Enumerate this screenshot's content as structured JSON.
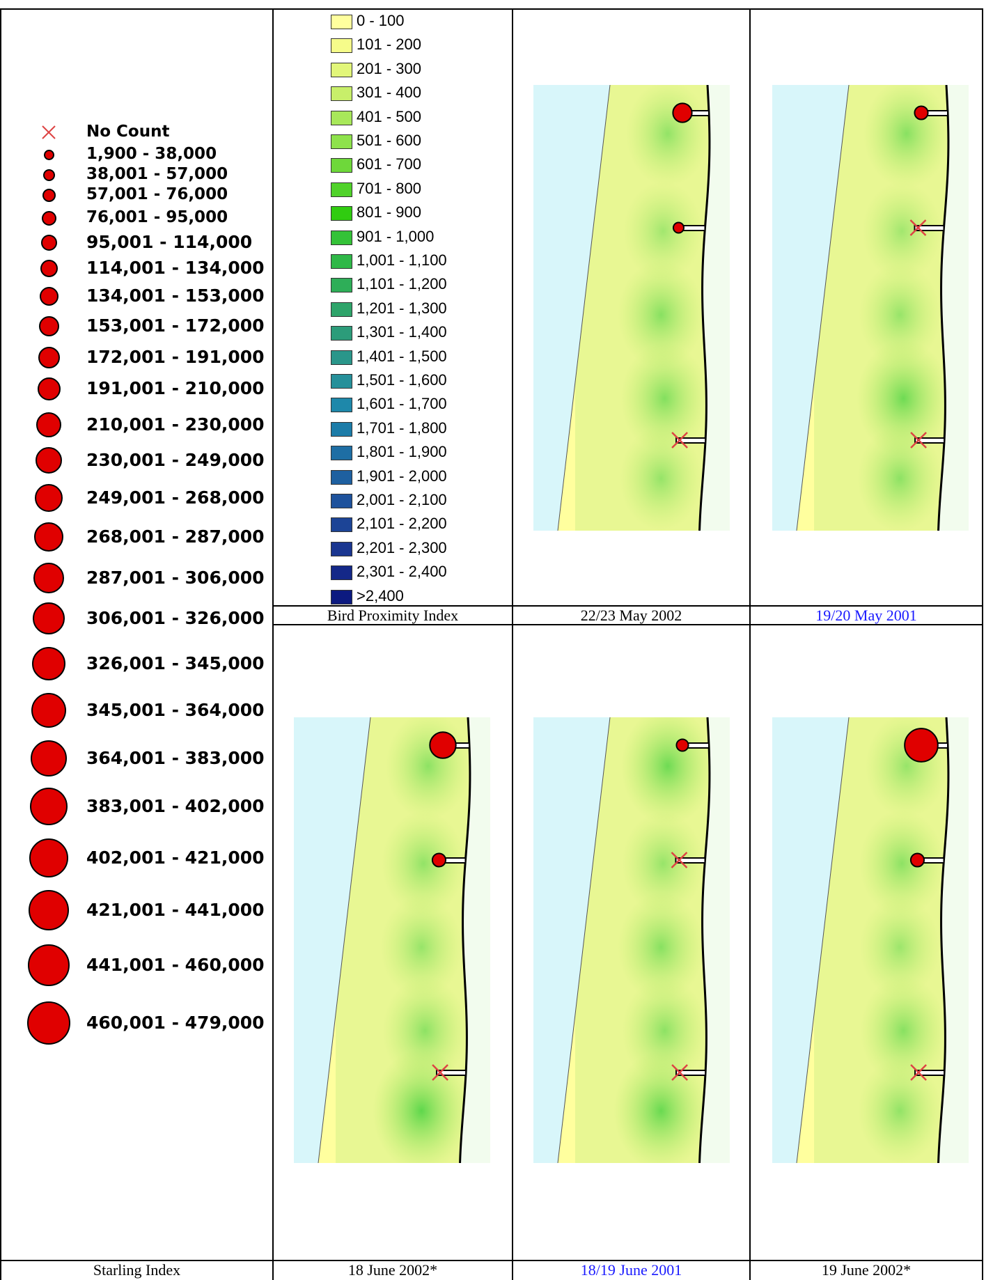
{
  "starling_legend": {
    "items": [
      {
        "label": "No Count",
        "symbol": "x-icon"
      },
      {
        "label": "1,900 - 38,000"
      },
      {
        "label": "38,001 - 57,000"
      },
      {
        "label": "57,001 - 76,000"
      },
      {
        "label": "76,001 - 95,000"
      },
      {
        "label": "95,001 - 114,000"
      },
      {
        "label": "114,001 - 134,000"
      },
      {
        "label": "134,001 - 153,000"
      },
      {
        "label": "153,001 - 172,000"
      },
      {
        "label": "172,001 - 191,000"
      },
      {
        "label": "191,001 - 210,000"
      },
      {
        "label": "210,001 - 230,000"
      },
      {
        "label": "230,001 - 249,000"
      },
      {
        "label": "249,001 - 268,000"
      },
      {
        "label": "268,001 - 287,000"
      },
      {
        "label": "287,001 - 306,000"
      },
      {
        "label": "306,001 - 326,000"
      },
      {
        "label": "326,001 - 345,000"
      },
      {
        "label": "345,001 - 364,000"
      },
      {
        "label": "364,001 - 383,000"
      },
      {
        "label": "383,001 - 402,000"
      },
      {
        "label": "402,001 - 421,000"
      },
      {
        "label": "421,001 - 441,000"
      },
      {
        "label": "441,001 - 460,000"
      },
      {
        "label": "460,001 - 479,000"
      }
    ],
    "caption": "Starling Index"
  },
  "bpi_legend": {
    "items": [
      {
        "label": "0 - 100",
        "color": "#ffff9e"
      },
      {
        "label": "101 - 200",
        "color": "#f6fc8a"
      },
      {
        "label": "201 - 300",
        "color": "#e2f67a"
      },
      {
        "label": "301 - 400",
        "color": "#c8ef6a"
      },
      {
        "label": "401 - 500",
        "color": "#a8e85a"
      },
      {
        "label": "501 - 600",
        "color": "#8ee24c"
      },
      {
        "label": "601 - 700",
        "color": "#6ed83a"
      },
      {
        "label": "701 - 800",
        "color": "#50d22a"
      },
      {
        "label": "801 - 900",
        "color": "#30cc10"
      },
      {
        "label": "901 - 1,000",
        "color": "#34c238"
      },
      {
        "label": "1,001 - 1,100",
        "color": "#2fb848"
      },
      {
        "label": "1,101 - 1,200",
        "color": "#2eae58"
      },
      {
        "label": "1,201 - 1,300",
        "color": "#2ea46a"
      },
      {
        "label": "1,301 - 1,400",
        "color": "#2c9c7a"
      },
      {
        "label": "1,401 - 1,500",
        "color": "#2a968a"
      },
      {
        "label": "1,501 - 1,600",
        "color": "#26909a"
      },
      {
        "label": "1,601 - 1,700",
        "color": "#1e88aa"
      },
      {
        "label": "1,701 - 1,800",
        "color": "#1c7ca8"
      },
      {
        "label": "1,801 - 1,900",
        "color": "#1e6ea4"
      },
      {
        "label": "1,901 - 2,000",
        "color": "#1e60a0"
      },
      {
        "label": "2,001 - 2,100",
        "color": "#1e529c"
      },
      {
        "label": "2,101 - 2,200",
        "color": "#1c4496"
      },
      {
        "label": "2,201 - 2,300",
        "color": "#1a3690"
      },
      {
        "label": "2,301 - 2,400",
        "color": "#142888"
      },
      {
        "label": ">2,400",
        "color": "#0c1a80"
      }
    ],
    "caption": "Bird Proximity Index"
  },
  "maps": [
    {
      "caption": "22/23 May 2002",
      "caption_color": "black",
      "sites": [
        {
          "symbol": "circle",
          "size_class": 7
        },
        {
          "symbol": "circle",
          "size_class": 1
        },
        {
          "symbol": "x"
        }
      ],
      "hotspots": [
        0.25,
        0.1,
        0.35,
        0.4,
        0.22
      ]
    },
    {
      "caption": "19/20 May 2001",
      "caption_color": "blue",
      "sites": [
        {
          "symbol": "circle",
          "size_class": 3
        },
        {
          "symbol": "x"
        },
        {
          "symbol": "x"
        }
      ],
      "hotspots": [
        0.35,
        0.1,
        0.2,
        0.6,
        0.3
      ]
    },
    {
      "caption": "18 June 2002*",
      "caption_color": "black",
      "sites": [
        {
          "symbol": "circle",
          "size_class": 12
        },
        {
          "symbol": "circle",
          "size_class": 3
        },
        {
          "symbol": "x"
        }
      ],
      "hotspots": [
        0.3,
        0.25,
        0.2,
        0.3,
        0.75
      ]
    },
    {
      "caption": "18/19 June 2001",
      "caption_color": "blue",
      "sites": [
        {
          "symbol": "circle",
          "size_class": 2
        },
        {
          "symbol": "x"
        },
        {
          "symbol": "x"
        }
      ],
      "hotspots": [
        0.6,
        0.2,
        0.35,
        0.3,
        0.65
      ]
    },
    {
      "caption": "19 June 2002*",
      "caption_color": "black",
      "sites": [
        {
          "symbol": "circle",
          "size_class": 17
        },
        {
          "symbol": "circle",
          "size_class": 3
        },
        {
          "symbol": "x"
        }
      ],
      "hotspots": [
        0.2,
        0.3,
        0.15,
        0.35,
        0.25
      ]
    }
  ]
}
